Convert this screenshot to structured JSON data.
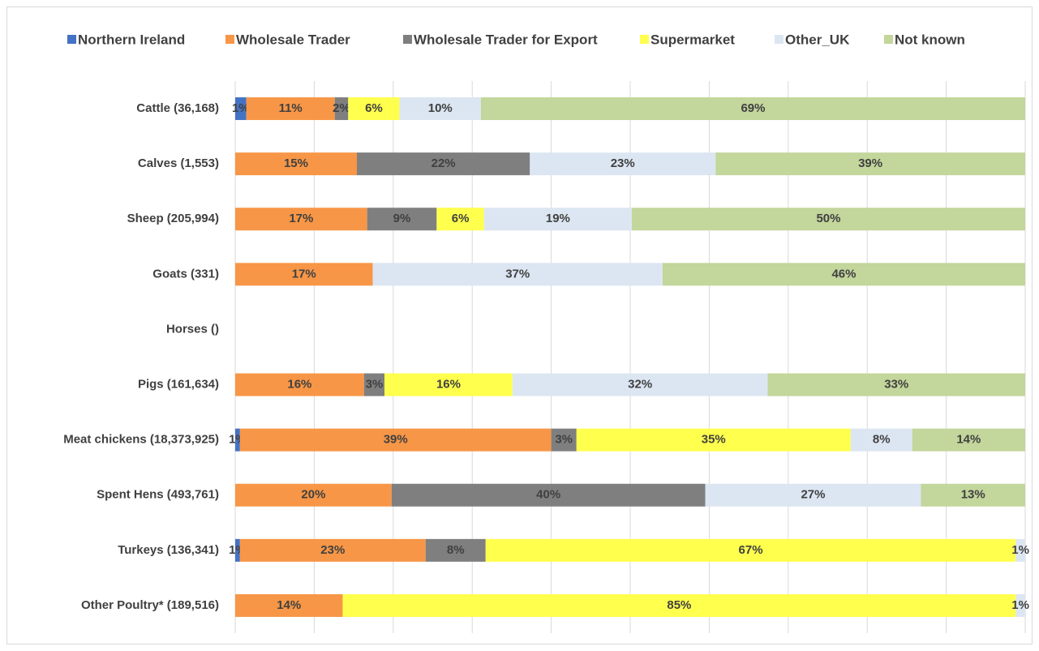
{
  "chart_data": {
    "type": "stacked-bar-horizontal",
    "categories": [
      "Cattle (36,168)",
      "Calves (1,553)",
      "Sheep (205,994)",
      "Goats (331)",
      "Horses ()",
      "Pigs (161,634)",
      "Meat chickens (18,373,925)",
      "Spent Hens (493,761)",
      "Turkeys (136,341)",
      "Other Poultry* (189,516)"
    ],
    "series": [
      {
        "name": "Northern Ireland",
        "color": "#4472c4",
        "values": [
          1.4,
          0,
          0,
          0,
          null,
          0,
          0.6,
          0,
          0.6,
          0
        ],
        "value_labels": [
          "1%",
          null,
          null,
          null,
          null,
          null,
          "1%",
          null,
          "1%",
          null
        ]
      },
      {
        "name": "Wholesale Trader",
        "color": "#f79646",
        "values": [
          11.2,
          15.4,
          16.7,
          17.4,
          null,
          16.3,
          39.4,
          19.8,
          23.5,
          13.6
        ],
        "value_labels": [
          "11%",
          "15%",
          "17%",
          "17%",
          null,
          "16%",
          "39%",
          "20%",
          "23%",
          "14%"
        ]
      },
      {
        "name": "Wholesale Trader for Export",
        "color": "#7f7f7f",
        "values": [
          1.7,
          21.9,
          8.8,
          0,
          null,
          2.6,
          3.2,
          39.7,
          7.6,
          0
        ],
        "value_labels": [
          "2%",
          "22%",
          "9%",
          null,
          null,
          "3%",
          "3%",
          "40%",
          "8%",
          null
        ]
      },
      {
        "name": "Supermarket",
        "color": "#ffff4d",
        "values": [
          6.5,
          0,
          6.0,
          0,
          null,
          16.2,
          34.7,
          0,
          67.1,
          85.2
        ],
        "value_labels": [
          "6%",
          null,
          "6%",
          null,
          null,
          "16%",
          "35%",
          null,
          "67%",
          "85%"
        ]
      },
      {
        "name": "Other_UK",
        "color": "#dce6f2",
        "values": [
          10.3,
          23.5,
          18.7,
          36.7,
          null,
          32.3,
          7.8,
          27.3,
          1.2,
          1.2
        ],
        "value_labels": [
          "10%",
          "23%",
          "19%",
          "37%",
          null,
          "32%",
          "8%",
          "27%",
          "1%",
          "1%"
        ]
      },
      {
        "name": "Not known",
        "color": "#c3d69b",
        "values": [
          68.9,
          39.2,
          49.8,
          45.9,
          null,
          32.6,
          14.3,
          13.2,
          0,
          0
        ],
        "value_labels": [
          "69%",
          "39%",
          "50%",
          "46%",
          null,
          "33%",
          "14%",
          "13%",
          null,
          null
        ]
      }
    ],
    "xlim": [
      0,
      100
    ],
    "xticks": [
      0,
      10,
      20,
      30,
      40,
      50,
      60,
      70,
      80,
      90,
      100
    ],
    "grid": true,
    "legend": "top"
  }
}
